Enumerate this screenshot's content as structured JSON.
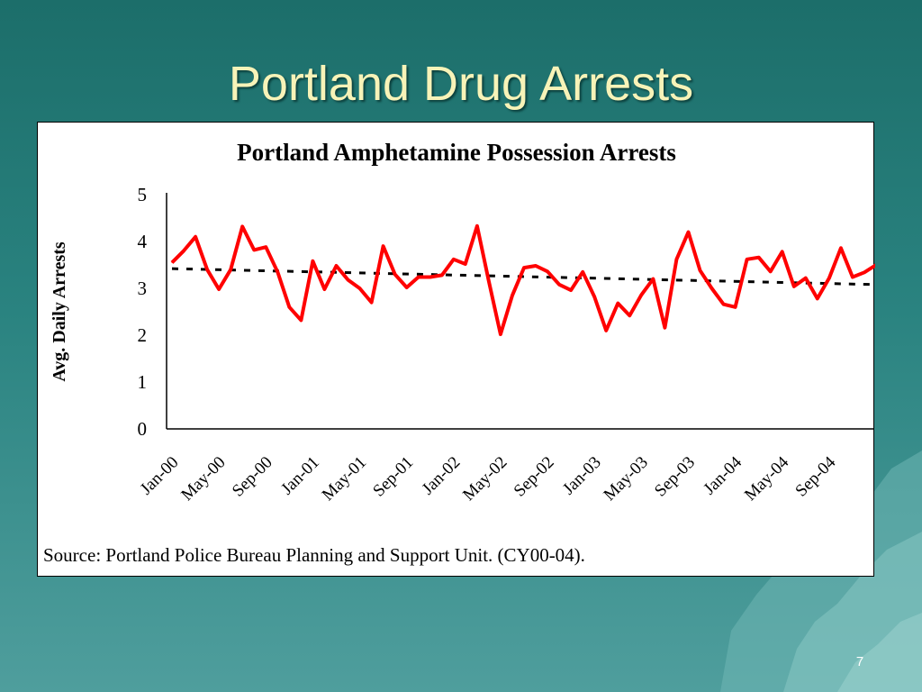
{
  "slide": {
    "title": "Portland Drug Arrests",
    "page_number": "7",
    "source": "Source: Portland Police Bureau Planning and Support Unit. (CY00-04)."
  },
  "colors": {
    "series": "#ff0000",
    "trend": "#000000",
    "title": "#f7f3b8",
    "background": "#1c6e6a"
  },
  "chart_data": {
    "type": "line",
    "title": "Portland Amphetamine Possession Arrests",
    "xlabel": "",
    "ylabel": "Avg. Daily Arrests",
    "ylim": [
      0,
      5
    ],
    "yticks": [
      "0",
      "1",
      "2",
      "3",
      "4",
      "5"
    ],
    "xtick_labels": [
      "Jan-00",
      "May-00",
      "Sep-00",
      "Jan-01",
      "May-01",
      "Sep-01",
      "Jan-02",
      "May-02",
      "Sep-02",
      "Jan-03",
      "May-03",
      "Sep-03",
      "Jan-04",
      "May-04",
      "Sep-04"
    ],
    "x": [
      "Jan-00",
      "Feb-00",
      "Mar-00",
      "Apr-00",
      "May-00",
      "Jun-00",
      "Jul-00",
      "Aug-00",
      "Sep-00",
      "Oct-00",
      "Nov-00",
      "Dec-00",
      "Jan-01",
      "Feb-01",
      "Mar-01",
      "Apr-01",
      "May-01",
      "Jun-01",
      "Jul-01",
      "Aug-01",
      "Sep-01",
      "Oct-01",
      "Nov-01",
      "Dec-01",
      "Jan-02",
      "Feb-02",
      "Mar-02",
      "Apr-02",
      "May-02",
      "Jun-02",
      "Jul-02",
      "Aug-02",
      "Sep-02",
      "Oct-02",
      "Nov-02",
      "Dec-02",
      "Jan-03",
      "Feb-03",
      "Mar-03",
      "Apr-03",
      "May-03",
      "Jun-03",
      "Jul-03",
      "Aug-03",
      "Sep-03",
      "Oct-03",
      "Nov-03",
      "Dec-03",
      "Jan-04",
      "Feb-04",
      "Mar-04",
      "Apr-04",
      "May-04",
      "Jun-04",
      "Jul-04",
      "Aug-04",
      "Sep-04",
      "Oct-04",
      "Nov-04",
      "Dec-04",
      "Jan-05"
    ],
    "series": [
      {
        "values": [
          3.55,
          3.8,
          4.1,
          3.4,
          2.98,
          3.4,
          4.32,
          3.82,
          3.88,
          3.35,
          2.6,
          2.32,
          3.58,
          2.98,
          3.48,
          3.18,
          3.0,
          2.7,
          3.9,
          3.3,
          3.02,
          3.24,
          3.24,
          3.28,
          3.62,
          3.52,
          4.33,
          3.15,
          2.02,
          2.85,
          3.44,
          3.48,
          3.36,
          3.08,
          2.96,
          3.35,
          2.82,
          2.1,
          2.68,
          2.42,
          2.86,
          3.2,
          2.16,
          3.62,
          4.2,
          3.38,
          3.0,
          2.66,
          2.6,
          3.62,
          3.66,
          3.36,
          3.78,
          3.04,
          3.22,
          2.78,
          3.22,
          3.86,
          3.24,
          3.34,
          3.5
        ]
      }
    ],
    "trendline": {
      "style": "dashed",
      "start": 3.42,
      "end": 3.08
    },
    "grid": false,
    "legend": "none"
  }
}
